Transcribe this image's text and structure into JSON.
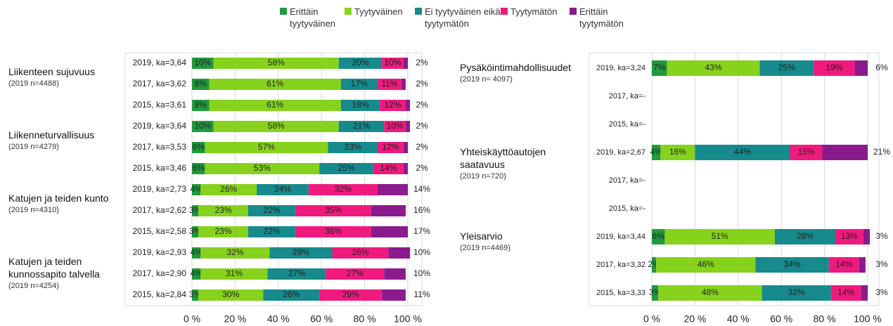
{
  "chart_data": [
    {
      "type": "bar",
      "orientation": "horizontal",
      "stacked": true,
      "categories": [
        "2019, ka=3,64",
        "2017, ka=3,62",
        "2015, ka=3,61",
        "2019, ka=3,64",
        "2017, ka=3,53",
        "2015, ka=3,46",
        "2019, ka=2,73",
        "2017, ka=2,62",
        "2015, ka=2,58",
        "2019, ka=2,93",
        "2017, ka=2,90",
        "2015, ka=2,84"
      ],
      "groups": [
        {
          "label": "Liikenteen sujuvuus",
          "note": "(2019 n=4488)"
        },
        {
          "label": "Liikenneturvallisuus",
          "note": "(2019 n=4279)"
        },
        {
          "label": "Katujen ja teiden kunto",
          "note": "(2019 n=4310)"
        },
        {
          "label": "Katujen ja teiden kunnossapito talvella",
          "note": "(2019 n=4254)"
        }
      ],
      "series": [
        {
          "name": "Erittäin tyytyväinen",
          "color": "#1f9a3e",
          "values": [
            10,
            8,
            8,
            10,
            6,
            6,
            4,
            3,
            3,
            4,
            4,
            3
          ],
          "value_labels": [
            "10%",
            "8%",
            "8%",
            "10%",
            "6%",
            "6%",
            "4%",
            "3%",
            "3%",
            "4%",
            "4%",
            "3%"
          ]
        },
        {
          "name": "Tyytyväinen",
          "color": "#86d21c",
          "values": [
            58,
            61,
            61,
            58,
            57,
            53,
            26,
            23,
            23,
            32,
            31,
            30
          ],
          "value_labels": [
            "58%",
            "61%",
            "61%",
            "58%",
            "57%",
            "53%",
            "26%",
            "23%",
            "23%",
            "32%",
            "31%",
            "30%"
          ]
        },
        {
          "name": "Ei tyytyväinen eikä tyytymätön",
          "color": "#168a8c",
          "values": [
            20,
            17,
            18,
            21,
            23,
            25,
            24,
            22,
            22,
            29,
            27,
            26
          ],
          "value_labels": [
            "20%",
            "17%",
            "18%",
            "21%",
            "23%",
            "25%",
            "24%",
            "22%",
            "22%",
            "29%",
            "27%",
            "26%"
          ]
        },
        {
          "name": "Tyytymätön",
          "color": "#f0197e",
          "values": [
            10,
            11,
            12,
            10,
            12,
            14,
            32,
            35,
            35,
            26,
            27,
            29
          ],
          "value_labels": [
            "10%",
            "11%",
            "12%",
            "10%",
            "12%",
            "14%",
            "32%",
            "35%",
            "35%",
            "26%",
            "27%",
            "29%"
          ]
        },
        {
          "name": "Erittäin tyytymätön",
          "color": "#8a1a8e",
          "values": [
            2,
            2,
            2,
            2,
            2,
            2,
            14,
            16,
            17,
            10,
            10,
            11
          ],
          "value_labels": [
            "2%",
            "2%",
            "2%",
            "2%",
            "2%",
            "2%",
            "14%",
            "16%",
            "17%",
            "10%",
            "10%",
            "11%"
          ]
        }
      ],
      "xlim": [
        0,
        100
      ],
      "xticks": [
        {
          "value": 0,
          "label": "0 %"
        },
        {
          "value": 20,
          "label": "20 %"
        },
        {
          "value": 40,
          "label": "40 %"
        },
        {
          "value": 60,
          "label": "60 %"
        },
        {
          "value": 80,
          "label": "80 %"
        },
        {
          "value": 100,
          "label": "100 %"
        }
      ],
      "grid": true
    },
    {
      "type": "bar",
      "orientation": "horizontal",
      "stacked": true,
      "categories": [
        "2019, ka=3,24",
        "2017, ka=-",
        "2015, ka=-",
        "2019, ka=2,67",
        "2017, ka=-",
        "2015, ka=-",
        "2019, ka=3,44",
        "2017, ka=3,32",
        "2015, ka=3,33"
      ],
      "groups": [
        {
          "label": "Pysäköintimahdollisuudet",
          "note": "(2019 n= 4097)"
        },
        {
          "label": "Yhteiskäyttöautojen saatavuus",
          "note": "(2019 n=720)"
        },
        {
          "label": "Yleisarvio",
          "note": "(2019 n=4469)"
        }
      ],
      "series": [
        {
          "name": "Erittäin tyytyväinen",
          "color": "#1f9a3e",
          "values": [
            7,
            null,
            null,
            4,
            null,
            null,
            6,
            2,
            3
          ],
          "value_labels": [
            "7%",
            null,
            null,
            "4%",
            null,
            null,
            "6%",
            "2%",
            "3%"
          ]
        },
        {
          "name": "Tyytyväinen",
          "color": "#86d21c",
          "values": [
            43,
            null,
            null,
            16,
            null,
            null,
            51,
            46,
            48
          ],
          "value_labels": [
            "43%",
            null,
            null,
            "16%",
            null,
            null,
            "51%",
            "46%",
            "48%"
          ]
        },
        {
          "name": "Ei tyytyväinen eikä tyytymätön",
          "color": "#168a8c",
          "values": [
            25,
            null,
            null,
            44,
            null,
            null,
            28,
            34,
            32
          ],
          "value_labels": [
            "25%",
            null,
            null,
            "44%",
            null,
            null,
            "28%",
            "34%",
            "32%"
          ]
        },
        {
          "name": "Tyytymätön",
          "color": "#f0197e",
          "values": [
            19,
            null,
            null,
            15,
            null,
            null,
            13,
            14,
            14
          ],
          "value_labels": [
            "19%",
            null,
            null,
            "15%",
            null,
            null,
            "13%",
            "14%",
            "14%"
          ]
        },
        {
          "name": "Erittäin tyytymätön",
          "color": "#8a1a8e",
          "values": [
            6,
            null,
            null,
            21,
            null,
            null,
            3,
            3,
            3
          ],
          "value_labels": [
            "6%",
            null,
            null,
            "21%",
            null,
            null,
            "3%",
            "3%",
            "3%"
          ]
        }
      ],
      "xlim": [
        0,
        100
      ],
      "xticks": [
        {
          "value": 0,
          "label": "0 %"
        },
        {
          "value": 20,
          "label": "20 %"
        },
        {
          "value": 40,
          "label": "40 %"
        },
        {
          "value": 60,
          "label": "60 %"
        },
        {
          "value": 80,
          "label": "80 %"
        },
        {
          "value": 100,
          "label": "100 %"
        }
      ],
      "grid": true
    }
  ]
}
